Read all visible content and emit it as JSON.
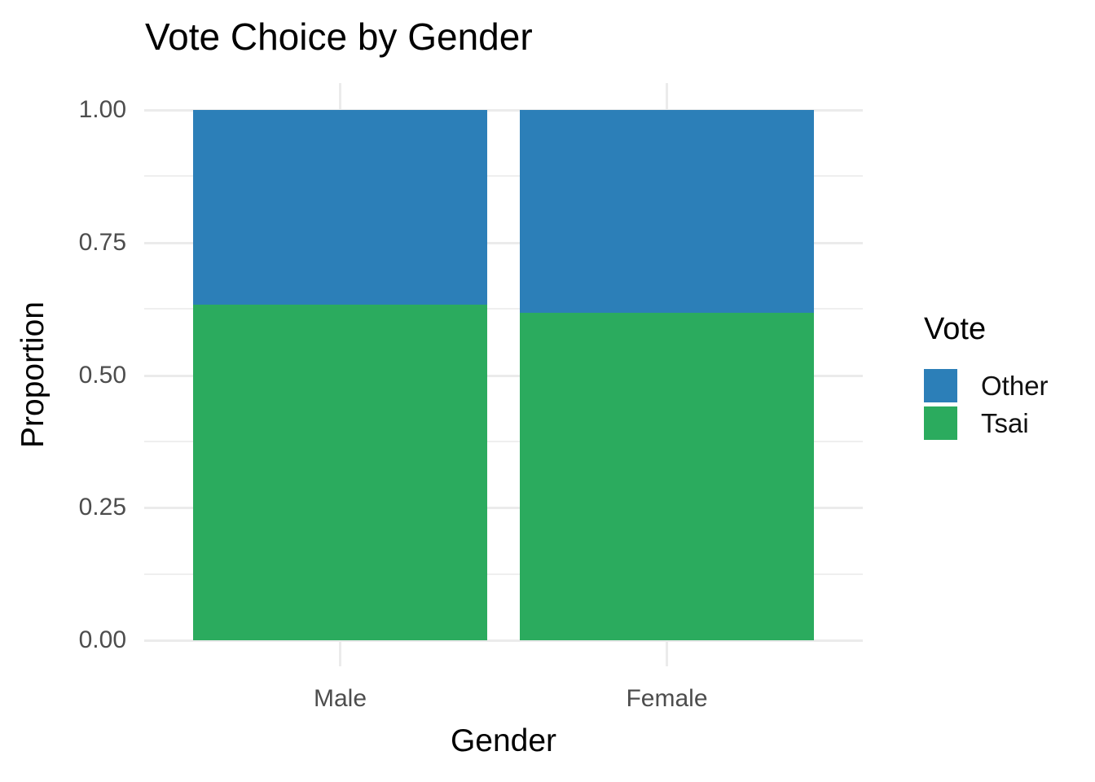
{
  "page": {
    "background": "#FFFFFF"
  },
  "chart_data": {
    "type": "bar",
    "stacked": true,
    "title": "Vote Choice by Gender",
    "xlabel": "Gender",
    "ylabel": "Proportion",
    "categories": [
      "Male",
      "Female"
    ],
    "series": [
      {
        "name": "Other",
        "color": "#2C7FB8",
        "values": [
          0.367,
          0.382
        ]
      },
      {
        "name": "Tsai",
        "color": "#2BAB5E",
        "values": [
          0.633,
          0.618
        ]
      }
    ],
    "stack_order_bottom_to_top": [
      "Tsai",
      "Other"
    ],
    "ylim": [
      0,
      1
    ],
    "yticks": [
      {
        "value": 0.0,
        "label": "0.00"
      },
      {
        "value": 0.25,
        "label": "0.25"
      },
      {
        "value": 0.5,
        "label": "0.50"
      },
      {
        "value": 0.75,
        "label": "0.75"
      },
      {
        "value": 1.0,
        "label": "1.00"
      }
    ],
    "yticks_minor": [
      0.125,
      0.375,
      0.625,
      0.875
    ],
    "legend": {
      "title": "Vote",
      "position": "right",
      "entries": [
        "Other",
        "Tsai"
      ]
    },
    "grid": {
      "horizontal_major": true,
      "horizontal_minor": true,
      "vertical_at_categories": true
    },
    "colors": {
      "grid_major": "#EBEBEB",
      "grid_minor": "#EFEFEF",
      "tick_label_text": "#4D4D4D",
      "title_text": "#000000",
      "legend_label_text": "#111111"
    }
  }
}
